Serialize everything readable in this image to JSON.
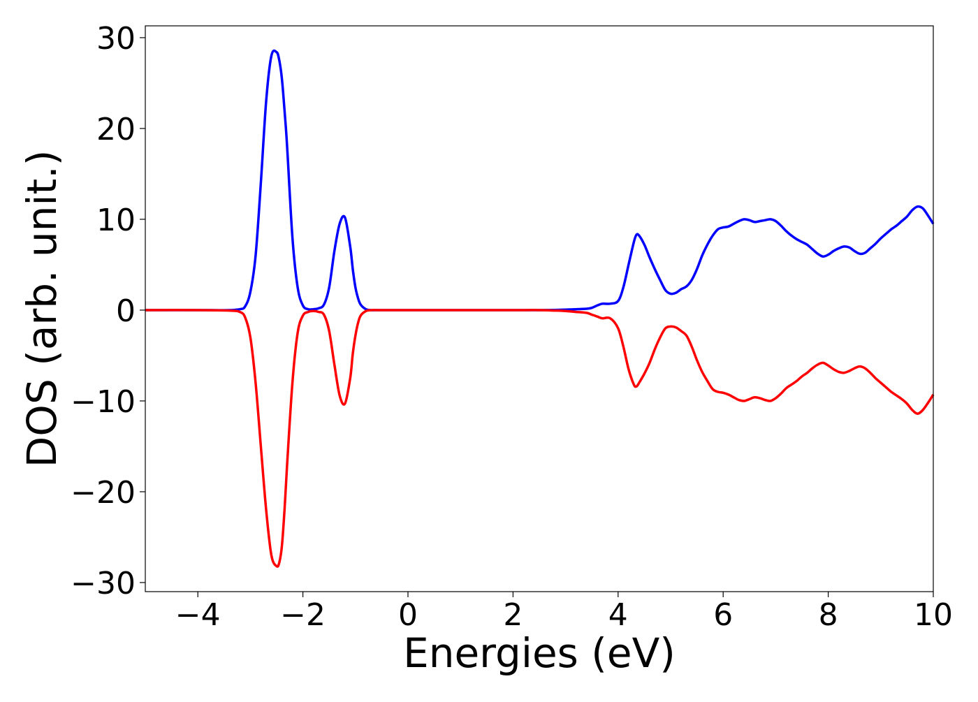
{
  "chart_data": {
    "type": "line",
    "title": "",
    "xlabel": "Energies (eV)",
    "ylabel": "DOS (arb. unit.)",
    "xlim": [
      -5,
      10
    ],
    "ylim": [
      -31,
      31.3
    ],
    "xticks": [
      -4,
      -2,
      0,
      2,
      4,
      6,
      8,
      10
    ],
    "xtick_labels": [
      "−4",
      "−2",
      "0",
      "2",
      "4",
      "6",
      "8",
      "10"
    ],
    "yticks": [
      -30,
      -20,
      -10,
      0,
      10,
      20,
      30
    ],
    "ytick_labels": [
      "−30",
      "−20",
      "−10",
      "0",
      "10",
      "20",
      "30"
    ],
    "grid": false,
    "legend": "none",
    "series": [
      {
        "color": "#0000ff",
        "x": [
          -5,
          -4,
          -3.4,
          -3.2,
          -3.1,
          -3.0,
          -2.9,
          -2.8,
          -2.7,
          -2.6,
          -2.5,
          -2.45,
          -2.4,
          -2.35,
          -2.3,
          -2.2,
          -2.1,
          -2.0,
          -1.9,
          -1.8,
          -1.7,
          -1.6,
          -1.5,
          -1.4,
          -1.3,
          -1.2,
          -1.1,
          -1.05,
          -1.0,
          -0.95,
          -0.9,
          -0.8,
          -0.7,
          -0.6,
          -0.5,
          0,
          1,
          2,
          2.5,
          2.8,
          3.0,
          3.2,
          3.4,
          3.5,
          3.6,
          3.7,
          3.85,
          4.0,
          4.1,
          4.2,
          4.3,
          4.35,
          4.4,
          4.5,
          4.6,
          4.7,
          4.8,
          4.9,
          5.0,
          5.1,
          5.2,
          5.3,
          5.4,
          5.5,
          5.6,
          5.7,
          5.8,
          5.9,
          6.0,
          6.1,
          6.2,
          6.3,
          6.4,
          6.5,
          6.6,
          6.7,
          6.8,
          6.9,
          7.0,
          7.1,
          7.2,
          7.3,
          7.4,
          7.5,
          7.6,
          7.7,
          7.8,
          7.9,
          8.0,
          8.1,
          8.2,
          8.3,
          8.4,
          8.5,
          8.6,
          8.7,
          8.8,
          8.9,
          9.0,
          9.1,
          9.2,
          9.3,
          9.4,
          9.5,
          9.6,
          9.7,
          9.8,
          9.9,
          10.0
        ],
        "y": [
          0,
          0,
          0,
          0.1,
          0.4,
          2,
          6,
          14,
          23,
          28,
          28.4,
          27.5,
          25.5,
          22,
          18,
          8,
          2.5,
          0.5,
          0.1,
          0.1,
          0.2,
          0.6,
          2.5,
          6.5,
          9.5,
          10.2,
          7,
          4.5,
          2.5,
          1.3,
          0.6,
          0.1,
          0,
          0,
          0,
          0,
          0,
          0,
          0,
          0.02,
          0.05,
          0.1,
          0.15,
          0.25,
          0.5,
          0.7,
          0.7,
          1.0,
          2.5,
          5.0,
          7.5,
          8.3,
          8.2,
          7.2,
          5.8,
          4.5,
          3.3,
          2.2,
          1.8,
          1.9,
          2.3,
          2.6,
          3.3,
          4.5,
          6.0,
          7.2,
          8.2,
          8.9,
          9.1,
          9.2,
          9.5,
          9.8,
          10.0,
          9.9,
          9.7,
          9.8,
          9.9,
          10.0,
          9.8,
          9.3,
          8.7,
          8.2,
          7.8,
          7.5,
          7.2,
          6.7,
          6.2,
          5.9,
          6.1,
          6.5,
          6.8,
          7.0,
          6.9,
          6.5,
          6.2,
          6.3,
          6.8,
          7.3,
          7.9,
          8.4,
          8.9,
          9.3,
          9.8,
          10.3,
          11.0,
          11.4,
          11.2,
          10.4,
          9.5
        ]
      },
      {
        "color": "#ff0000",
        "x": [
          -5,
          -4,
          -3.4,
          -3.2,
          -3.1,
          -3.0,
          -2.9,
          -2.8,
          -2.7,
          -2.6,
          -2.5,
          -2.45,
          -2.4,
          -2.35,
          -2.3,
          -2.2,
          -2.1,
          -2.0,
          -1.9,
          -1.8,
          -1.7,
          -1.6,
          -1.5,
          -1.4,
          -1.3,
          -1.2,
          -1.1,
          -1.05,
          -1.0,
          -0.95,
          -0.9,
          -0.8,
          -0.7,
          -0.6,
          -0.5,
          0,
          1,
          2,
          2.5,
          2.8,
          3.0,
          3.2,
          3.4,
          3.5,
          3.6,
          3.7,
          3.85,
          4.0,
          4.1,
          4.2,
          4.3,
          4.35,
          4.4,
          4.5,
          4.6,
          4.7,
          4.8,
          4.9,
          5.0,
          5.1,
          5.2,
          5.3,
          5.4,
          5.5,
          5.6,
          5.7,
          5.8,
          5.9,
          6.0,
          6.1,
          6.2,
          6.3,
          6.4,
          6.5,
          6.6,
          6.7,
          6.8,
          6.9,
          7.0,
          7.1,
          7.2,
          7.3,
          7.4,
          7.5,
          7.6,
          7.7,
          7.8,
          7.9,
          8.0,
          8.1,
          8.2,
          8.3,
          8.4,
          8.5,
          8.6,
          8.7,
          8.8,
          8.9,
          9.0,
          9.1,
          9.2,
          9.3,
          9.4,
          9.5,
          9.6,
          9.7,
          9.8,
          9.9,
          10.0
        ],
        "y": [
          0,
          0,
          -0.05,
          -0.2,
          -0.8,
          -3,
          -8,
          -15,
          -22,
          -27,
          -28.2,
          -27.8,
          -26,
          -22,
          -17,
          -8,
          -2.5,
          -0.6,
          -0.2,
          -0.1,
          -0.2,
          -0.5,
          -2.3,
          -6,
          -9.4,
          -10.3,
          -7.5,
          -4.8,
          -2.8,
          -1.4,
          -0.6,
          -0.1,
          0,
          0,
          0,
          0,
          0,
          0,
          0,
          -0.05,
          -0.1,
          -0.2,
          -0.3,
          -0.5,
          -0.7,
          -0.9,
          -0.9,
          -2.0,
          -4.0,
          -6.5,
          -8.2,
          -8.4,
          -8.0,
          -7.0,
          -5.8,
          -4.3,
          -3.0,
          -2.0,
          -1.8,
          -1.9,
          -2.3,
          -2.8,
          -4.0,
          -5.5,
          -6.8,
          -7.8,
          -8.7,
          -9.0,
          -9.1,
          -9.3,
          -9.6,
          -9.9,
          -10.0,
          -9.8,
          -9.6,
          -9.7,
          -9.9,
          -10.0,
          -9.7,
          -9.2,
          -8.6,
          -8.2,
          -7.8,
          -7.3,
          -6.9,
          -6.4,
          -6.0,
          -5.8,
          -6.1,
          -6.5,
          -6.8,
          -6.9,
          -6.7,
          -6.4,
          -6.2,
          -6.4,
          -6.9,
          -7.5,
          -8.0,
          -8.5,
          -9.0,
          -9.4,
          -9.8,
          -10.3,
          -11.0,
          -11.4,
          -11.0,
          -10.2,
          -9.3
        ]
      }
    ]
  }
}
